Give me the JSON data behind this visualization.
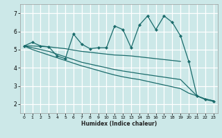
{
  "xlabel": "Humidex (Indice chaleur)",
  "xlim": [
    -0.5,
    23.5
  ],
  "ylim": [
    1.5,
    7.5
  ],
  "yticks": [
    2,
    3,
    4,
    5,
    6,
    7
  ],
  "xticks": [
    0,
    1,
    2,
    3,
    4,
    5,
    6,
    7,
    8,
    9,
    10,
    11,
    12,
    13,
    14,
    15,
    16,
    17,
    18,
    19,
    20,
    21,
    22,
    23
  ],
  "bg_color": "#cce8e8",
  "plot_bg": "#cce8e8",
  "grid_color": "#ffffff",
  "line_color": "#1a6b6b",
  "line1_x": [
    0,
    1,
    2,
    3,
    4,
    5,
    6,
    7,
    8,
    9,
    10,
    11,
    12,
    13,
    14,
    15,
    16,
    17,
    18,
    19,
    20,
    21,
    22,
    23
  ],
  "line1_y": [
    5.2,
    5.4,
    5.2,
    5.15,
    4.65,
    4.5,
    5.85,
    5.3,
    5.05,
    5.1,
    5.1,
    6.3,
    6.1,
    5.1,
    6.35,
    6.85,
    6.1,
    6.85,
    6.5,
    5.75,
    4.35,
    2.45,
    2.25,
    2.15
  ],
  "line2_x": [
    0,
    1,
    3,
    5,
    6,
    7,
    8,
    9,
    10,
    11,
    12,
    13,
    14,
    19
  ],
  "line2_y": [
    5.2,
    5.2,
    5.15,
    5.05,
    4.97,
    4.9,
    4.85,
    4.8,
    4.75,
    4.7,
    4.68,
    4.65,
    4.6,
    4.35
  ],
  "line3_x": [
    0,
    1,
    3,
    4,
    5,
    6,
    7,
    8,
    9,
    10,
    11,
    12,
    13,
    14,
    19,
    21,
    22,
    23
  ],
  "line3_y": [
    5.2,
    5.1,
    4.9,
    4.75,
    4.6,
    4.45,
    4.3,
    4.2,
    4.1,
    4.0,
    3.9,
    3.82,
    3.75,
    3.68,
    3.35,
    2.45,
    2.28,
    2.18
  ],
  "line4_x": [
    0,
    1,
    3,
    4,
    5,
    6,
    7,
    8,
    9,
    10,
    11,
    12,
    13,
    14,
    19,
    20,
    21,
    22,
    23
  ],
  "line4_y": [
    5.2,
    5.0,
    4.7,
    4.55,
    4.4,
    4.25,
    4.1,
    3.98,
    3.85,
    3.72,
    3.6,
    3.5,
    3.42,
    3.35,
    2.85,
    2.6,
    2.45,
    2.28,
    2.18
  ]
}
